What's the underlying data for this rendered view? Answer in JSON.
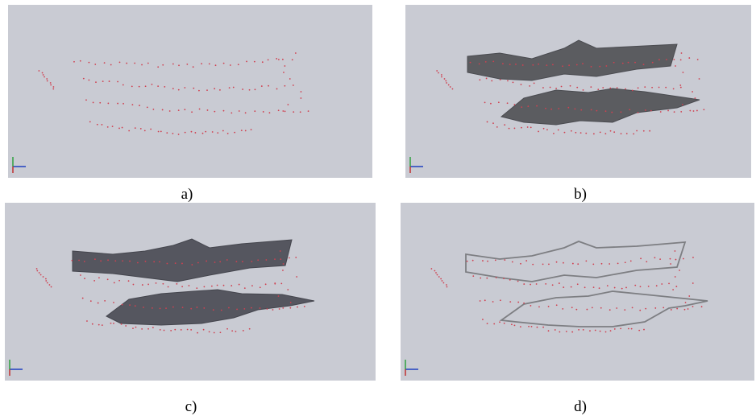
{
  "panels": [
    {
      "caption": "a)"
    },
    {
      "caption": "b)"
    },
    {
      "caption": "c)"
    },
    {
      "caption": "d)"
    }
  ]
}
